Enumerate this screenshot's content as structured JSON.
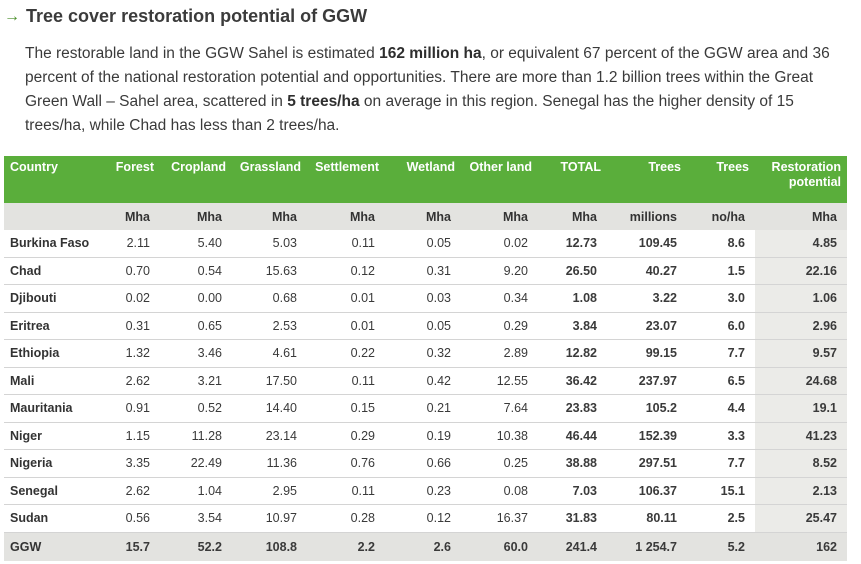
{
  "heading": {
    "arrow": "→",
    "title": "Tree cover restoration potential of GGW"
  },
  "intro": {
    "p1": "The restorable land in the GGW Sahel is estimated ",
    "b1": "162 million ha",
    "p2": ", or equivalent 67 percent of the GGW area and 36 percent of the national restoration potential and opportunities. There are more than 1.2 billion trees within the Great Green Wall – Sahel area, scattered in ",
    "b2": "5 trees/ha",
    "p3": " on average in this region. Senegal has the higher density of 15 trees/ha, while Chad has less than 2 trees/ha."
  },
  "table": {
    "headers": [
      "Country",
      "Forest",
      "Cropland",
      "Grassland",
      "Settlement",
      "Wetland",
      "Other land",
      "TOTAL",
      "Trees",
      "Trees",
      "Restoration potential"
    ],
    "units": [
      "",
      "Mha",
      "Mha",
      "Mha",
      "Mha",
      "Mha",
      "Mha",
      "Mha",
      "millions",
      "no/ha",
      "Mha"
    ],
    "rows": [
      [
        "Burkina Faso",
        "2.11",
        "5.40",
        "5.03",
        "0.11",
        "0.05",
        "0.02",
        "12.73",
        "109.45",
        "8.6",
        "4.85"
      ],
      [
        "Chad",
        "0.70",
        "0.54",
        "15.63",
        "0.12",
        "0.31",
        "9.20",
        "26.50",
        "40.27",
        "1.5",
        "22.16"
      ],
      [
        "Djibouti",
        "0.02",
        "0.00",
        "0.68",
        "0.01",
        "0.03",
        "0.34",
        "1.08",
        "3.22",
        "3.0",
        "1.06"
      ],
      [
        "Eritrea",
        "0.31",
        "0.65",
        "2.53",
        "0.01",
        "0.05",
        "0.29",
        "3.84",
        "23.07",
        "6.0",
        "2.96"
      ],
      [
        "Ethiopia",
        "1.32",
        "3.46",
        "4.61",
        "0.22",
        "0.32",
        "2.89",
        "12.82",
        "99.15",
        "7.7",
        "9.57"
      ],
      [
        "Mali",
        "2.62",
        "3.21",
        "17.50",
        "0.11",
        "0.42",
        "12.55",
        "36.42",
        "237.97",
        "6.5",
        "24.68"
      ],
      [
        "Mauritania",
        "0.91",
        "0.52",
        "14.40",
        "0.15",
        "0.21",
        "7.64",
        "23.83",
        "105.2",
        "4.4",
        "19.1"
      ],
      [
        "Niger",
        "1.15",
        "11.28",
        "23.14",
        "0.29",
        "0.19",
        "10.38",
        "46.44",
        "152.39",
        "3.3",
        "41.23"
      ],
      [
        "Nigeria",
        "3.35",
        "22.49",
        "11.36",
        "0.76",
        "0.66",
        "0.25",
        "38.88",
        "297.51",
        "7.7",
        "8.52"
      ],
      [
        "Senegal",
        "2.62",
        "1.04",
        "2.95",
        "0.11",
        "0.23",
        "0.08",
        "7.03",
        "106.37",
        "15.1",
        "2.13"
      ],
      [
        "Sudan",
        "0.56",
        "3.54",
        "10.97",
        "0.28",
        "0.12",
        "16.37",
        "31.83",
        "80.11",
        "2.5",
        "25.47"
      ]
    ],
    "total_row": [
      "GGW",
      "15.7",
      "52.2",
      "108.8",
      "2.2",
      "2.6",
      "60.0",
      "241.4",
      "1 254.7",
      "5.2",
      "162"
    ]
  },
  "colors": {
    "header_green": "#5aae3b",
    "arrow_green": "#4a8f2a",
    "band_gray": "#e3e3e0"
  }
}
